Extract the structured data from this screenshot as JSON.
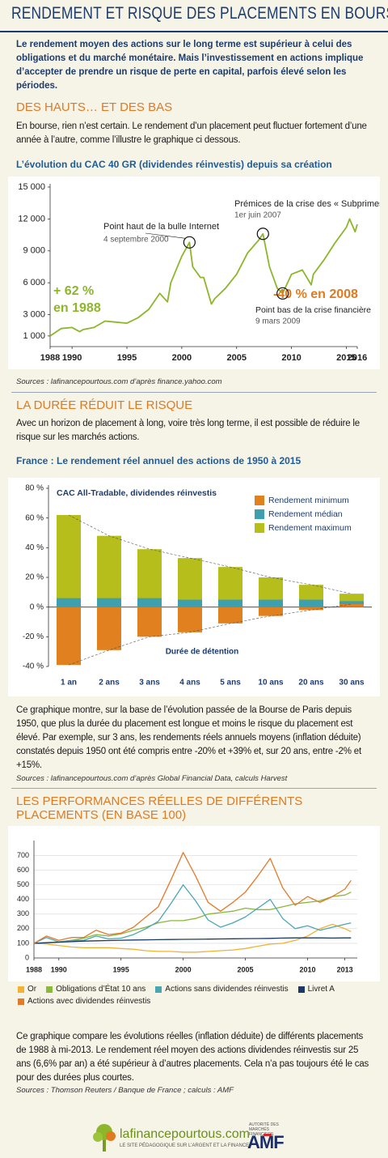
{
  "header": {
    "title": "RENDEMENT ET RISQUE DES PLACEMENTS EN BOURSE"
  },
  "intro": "Le rendement moyen des actions sur le long terme est supérieur à celui des obligations et du marché monétaire. Mais l’investissement en actions implique d’accepter de prendre un risque de perte en capital, parfois élevé selon les périodes.",
  "sections": [
    {
      "heading": "DES HAUTS… ET DES BAS",
      "text": "En bourse, rien n’est certain. Le rendement d’un placement peut fluctuer fortement d’une année à l’autre, comme l’illustre le graphique ci dessous.",
      "source": "Sources : lafinancepourtous.com d’après finance.yahoo.com"
    },
    {
      "heading": "LA DURÉE RÉDUIT LE RISQUE",
      "text": "Avec un horizon de placement à long, voire très long terme, il est possible de réduire le risque sur les marchés actions.",
      "note": "Ce graphique montre, sur la base de l’évolution passée de la Bourse de Paris depuis 1950, que plus la durée du placement est longue et moins le risque du placement est élevé. Par exemple, sur 3 ans, les rendements réels annuels moyens (inflation déduite) constatés depuis 1950 ont été compris entre -20% et +39% et, sur 20 ans, entre -2% et +15%.",
      "source": "Sources : lafinancepourtous.com d’après Global Financial Data, calculs Harvest"
    },
    {
      "heading": "LES PERFORMANCES RÉELLES DE DIFFÉRENTS PLACEMENTS (EN BASE 100)",
      "note": "Ce graphique compare les évolutions réelles (inflation déduite) de différents placements de 1988 à mi-2013. Le rendement réel moyen des actions dividendes réinvestis sur 25 ans (6,6% par an) a été supérieur à d’autres placements. Cela n’a pas toujours été le cas pour des durées plus courtes.",
      "source": "Sources : Thomson Reuters / Banque de France ; calculs : AMF"
    }
  ],
  "footer": {
    "site": "lafinancepourtous.com",
    "tagline": "LE SITE PÉDAGOGIQUE SUR L’ARGENT ET LA FINANCE",
    "amf": "AMF",
    "amf_name": "AUTORITÉ DES MARCHÉS FINANCIERS"
  },
  "chart_data": [
    {
      "type": "line",
      "title": "L’évolution du CAC 40 GR (dividendes réinvestis) depuis sa création",
      "color": "#8db62b",
      "x": [
        1988,
        1989,
        1990,
        1990.7,
        1991,
        1992,
        1993,
        1994,
        1995,
        1996,
        1997,
        1998,
        1998.7,
        1999,
        2000,
        2000.7,
        2001,
        2001.7,
        2002,
        2002.7,
        2003,
        2004,
        2005,
        2006,
        2007,
        2007.4,
        2008,
        2008.7,
        2009.2,
        2010,
        2011,
        2011.8,
        2012,
        2013,
        2014,
        2015,
        2015.3,
        2015.8,
        2016
      ],
      "values": [
        1000,
        1700,
        1800,
        1400,
        1600,
        1800,
        2400,
        2300,
        2200,
        2700,
        3500,
        5000,
        4200,
        6000,
        8500,
        9800,
        7500,
        6500,
        6500,
        4000,
        4500,
        5500,
        6800,
        8800,
        10000,
        10600,
        7500,
        5500,
        5000,
        6800,
        7200,
        5800,
        6800,
        8200,
        9800,
        11200,
        12000,
        10800,
        11500
      ],
      "xlim": [
        1988,
        2016
      ],
      "xticks": [
        1988,
        1990,
        1995,
        2000,
        2005,
        2010,
        2015,
        2016
      ],
      "ylim": [
        0,
        15000
      ],
      "yticks": [
        {
          "value": 1000,
          "label": "1 000"
        },
        {
          "value": 3000,
          "label": "3 000"
        },
        {
          "value": 6000,
          "label": "6 000"
        },
        {
          "value": 9000,
          "label": "9 000"
        },
        {
          "value": 12000,
          "label": "12 000"
        },
        {
          "value": 15000,
          "label": "15 000"
        }
      ],
      "grid": false,
      "annotations": [
        "Prémices de la crise des « Subprimes »",
        "1er juin 2007",
        "Point haut de la bulle Internet",
        "4 septembre 2000",
        "+ 62 %",
        "en 1988",
        "-40 % en 2008",
        "Point bas de la crise financière",
        "9 mars 2009"
      ]
    },
    {
      "type": "bar",
      "title": "France : Le rendement réel annuel des actions de 1950 à 2015",
      "subtitle": "CAC All-Tradable, dividendes réinvestis",
      "xlabel": "Durée de détention",
      "categories": [
        "1 an",
        "2 ans",
        "3 ans",
        "4 ans",
        "5 ans",
        "10 ans",
        "20 ans",
        "30 ans"
      ],
      "series": [
        {
          "name": "Rendement minimum",
          "color": "#e0801f",
          "values": [
            -39,
            -29,
            -20,
            -17,
            -11,
            -6,
            -2,
            2
          ]
        },
        {
          "name": "Rendement médian",
          "color": "#3e9fae",
          "values": [
            6,
            6,
            6,
            5,
            5,
            5,
            5,
            4
          ]
        },
        {
          "name": "Rendement maximum",
          "color": "#b5be1b",
          "values": [
            62,
            48,
            39,
            33,
            27,
            20,
            15,
            9
          ]
        }
      ],
      "ylim": [
        -40,
        80
      ],
      "yticks": [
        {
          "value": -40,
          "label": "-40 %"
        },
        {
          "value": -20,
          "label": "-20 %"
        },
        {
          "value": 0,
          "label": "0 %"
        },
        {
          "value": 20,
          "label": "20 %"
        },
        {
          "value": 40,
          "label": "40 %"
        },
        {
          "value": 60,
          "label": "60 %"
        },
        {
          "value": 80,
          "label": "80 %"
        }
      ],
      "grid": false,
      "legend": "top-right"
    },
    {
      "type": "line",
      "x": [
        1988,
        1989,
        1990,
        1991,
        1992,
        1993,
        1994,
        1995,
        1996,
        1997,
        1998,
        1999,
        2000,
        2001,
        2002,
        2003,
        2004,
        2005,
        2006,
        2007,
        2008,
        2009,
        2010,
        2011,
        2012,
        2013,
        2013.5
      ],
      "series": [
        {
          "name": "Or",
          "color": "#f2b233",
          "values": [
            100,
            95,
            85,
            75,
            70,
            70,
            70,
            65,
            60,
            50,
            45,
            45,
            40,
            40,
            45,
            50,
            55,
            65,
            80,
            95,
            100,
            120,
            150,
            200,
            230,
            200,
            180
          ]
        },
        {
          "name": "Obligations d’État 10 ans",
          "color": "#8ab83a",
          "values": [
            100,
            105,
            110,
            120,
            135,
            160,
            150,
            165,
            190,
            210,
            240,
            255,
            255,
            270,
            300,
            310,
            320,
            340,
            330,
            330,
            350,
            370,
            380,
            390,
            420,
            430,
            450
          ]
        },
        {
          "name": "Actions sans dividendes réinvestis",
          "color": "#4ba6b4",
          "values": [
            100,
            140,
            110,
            120,
            120,
            150,
            130,
            135,
            160,
            200,
            250,
            370,
            500,
            390,
            260,
            210,
            240,
            280,
            340,
            400,
            270,
            200,
            220,
            190,
            210,
            230,
            240
          ]
        },
        {
          "name": "Livret A",
          "color": "#1b3a63",
          "values": [
            100,
            104,
            108,
            112,
            115,
            117,
            119,
            121,
            123,
            124,
            125,
            126,
            127,
            128,
            129,
            130,
            131,
            132,
            133,
            134,
            136,
            137,
            137,
            137,
            136,
            137,
            137
          ]
        },
        {
          "name": "Actions avec dividendes réinvestis",
          "color": "#e4792a",
          "values": [
            100,
            150,
            120,
            140,
            140,
            190,
            160,
            170,
            210,
            280,
            350,
            530,
            720,
            560,
            380,
            320,
            380,
            450,
            560,
            680,
            480,
            360,
            420,
            380,
            420,
            470,
            530
          ]
        }
      ],
      "xlim": [
        1988,
        2014
      ],
      "xticks": [
        1988,
        1990,
        1995,
        2000,
        2005,
        2010,
        2013
      ],
      "ylim": [
        0,
        780
      ],
      "yticks": [
        0,
        100,
        200,
        300,
        400,
        500,
        600,
        700
      ],
      "grid": true,
      "legend": "bottom"
    }
  ]
}
